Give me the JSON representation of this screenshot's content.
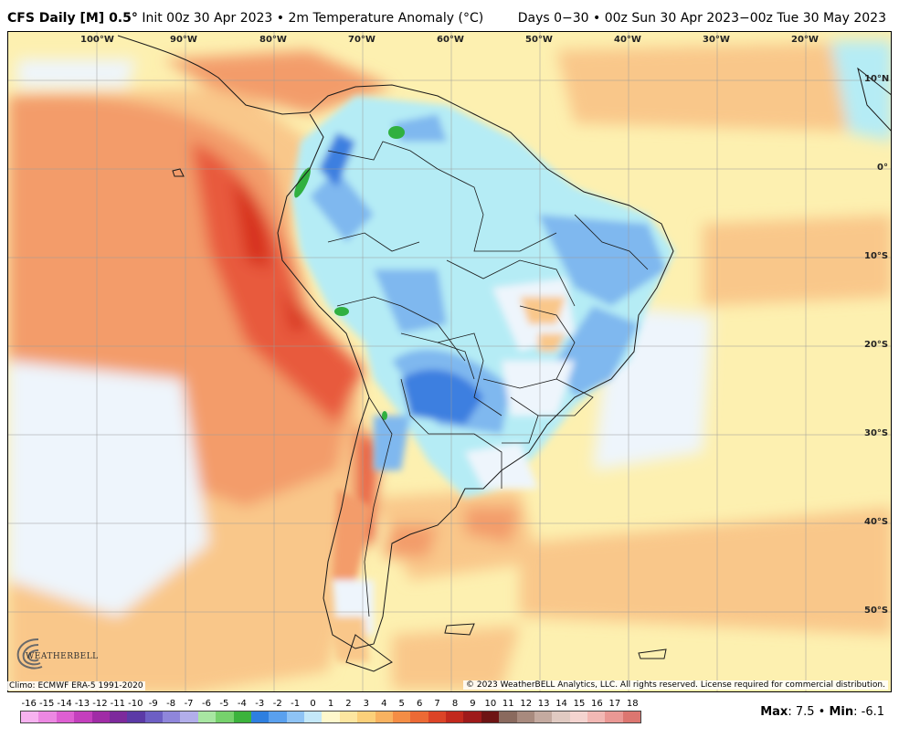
{
  "header": {
    "model": "CFS Daily [M] 0.5",
    "degree": "°",
    "init": " Init 00z 30 Apr 2023 • 2m Temperature Anomaly (°C)",
    "range": "Days 0−30 • 00z Sun 30 Apr 2023−00z Tue 30 May 2023"
  },
  "map": {
    "lon_labels": [
      "100°W",
      "90°W",
      "80°W",
      "70°W",
      "60°W",
      "50°W",
      "40°W",
      "30°W",
      "20°W"
    ],
    "lat_labels": [
      "10°N",
      "0°",
      "10°S",
      "20°S",
      "30°S",
      "40°S",
      "50°S"
    ],
    "colors": {
      "ocean_neutral": "#fdf0b0",
      "warm_light": "#f9c78a",
      "warm_mid": "#f39c6b",
      "warm_strong": "#e85a3c",
      "warm_hot": "#d7301f",
      "cool_faint": "#eef5fc",
      "cool_light": "#b5ecf5",
      "cool_mid": "#7fb8ef",
      "cool_strong": "#3d7fe0",
      "green": "#30b040",
      "border": "#1a1a1a"
    }
  },
  "footer": {
    "climo": "Climo: ECMWF ERA-5 1991-2020",
    "copyright": "© 2023 WeatherBELL Analytics, LLC. All rights reserved. License required for commercial distribution.",
    "logo_text": "WEATHERBELL",
    "max_label": "Max",
    "max_value": ": 7.5 • ",
    "min_label": "Min",
    "min_value": ": -6.1"
  },
  "colorbar": {
    "ticks": [
      "-16",
      "-15",
      "-14",
      "-13",
      "-12",
      "-11",
      "-10",
      "-9",
      "-8",
      "-7",
      "-6",
      "-5",
      "-4",
      "-3",
      "-2",
      "-1",
      "0",
      "1",
      "2",
      "3",
      "4",
      "5",
      "6",
      "7",
      "8",
      "9",
      "10",
      "11",
      "12",
      "13",
      "14",
      "15",
      "16",
      "17",
      "18"
    ],
    "colors": [
      "#f7b2f0",
      "#ec88e2",
      "#de5fd2",
      "#c43fbd",
      "#a02ca6",
      "#7d2a9c",
      "#5b3aa6",
      "#6d5fc4",
      "#8f86db",
      "#b2aeea",
      "#a8e6a2",
      "#76d16c",
      "#3cb33c",
      "#2e7fe0",
      "#5aa0ee",
      "#8ec3f5",
      "#c4e8f9",
      "#fff8cc",
      "#fde6a0",
      "#fbd07a",
      "#f8b260",
      "#f48d45",
      "#ec6a35",
      "#dc4427",
      "#c2291d",
      "#9e1a1a",
      "#6e1414",
      "#8a6a5e",
      "#a88a7e",
      "#c4aaa0",
      "#e0cac2",
      "#f4d4d0",
      "#f2b8b4",
      "#ea9894",
      "#dc7670"
    ]
  }
}
